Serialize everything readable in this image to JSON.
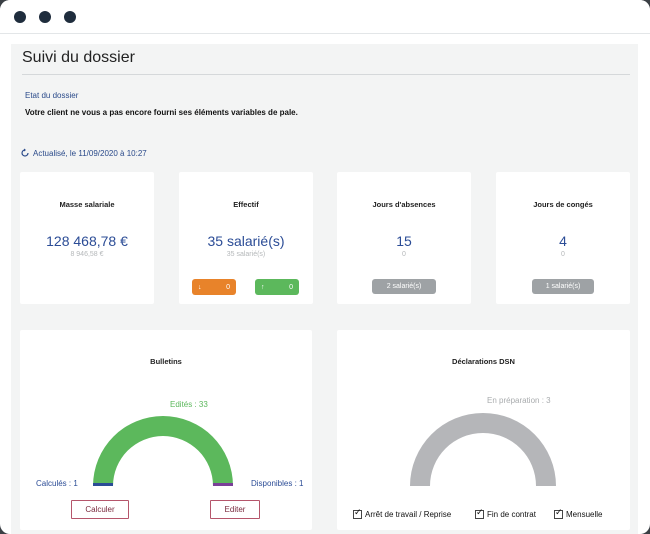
{
  "header": {
    "title": "Suivi du dossier"
  },
  "etat": {
    "label": "Etat du dossier",
    "message": "Votre client ne vous a pas encore fourni ses éléments variables de pale."
  },
  "refresh": {
    "icon": "refresh-icon",
    "text": "Actualisé, le 11/09/2020 à 10:27"
  },
  "kpis": {
    "masse": {
      "title": "Masse salariale",
      "value": "128 468,78 €",
      "sub": "8 946,58 €"
    },
    "effectif": {
      "title": "Effectif",
      "value": "35 salarié(s)",
      "sub": "35 salarié(s)",
      "down": {
        "icon": "arrow-down-icon",
        "count": "0",
        "color": "#e8832a"
      },
      "up": {
        "icon": "arrow-up-icon",
        "count": "0",
        "color": "#5cb85c"
      }
    },
    "absences": {
      "title": "Jours d'absences",
      "value": "15",
      "sub": "0",
      "badge": "2 salarié(s)"
    },
    "conges": {
      "title": "Jours de congés",
      "value": "4",
      "sub": "0",
      "badge": "1 salarié(s)"
    }
  },
  "bulletins": {
    "title": "Bulletins",
    "edites": "Edités : 33",
    "calcules": "Calculés : 1",
    "disponibles": "Disponibles : 1",
    "calculer_label": "Calculer",
    "editer_label": "Editer",
    "colors": {
      "edites": "#5cb85c",
      "calcules": "#2b4c96",
      "disponibles": "#7a3f98"
    }
  },
  "dsn": {
    "title": "Déclarations DSN",
    "en_preparation": "En préparation : 3",
    "color": "#b5b6b9",
    "filters": [
      {
        "label": "Arrêt de travail / Reprise",
        "checked": true
      },
      {
        "label": "Fin de contrat",
        "checked": true
      },
      {
        "label": "Mensuelle",
        "checked": true
      }
    ]
  }
}
